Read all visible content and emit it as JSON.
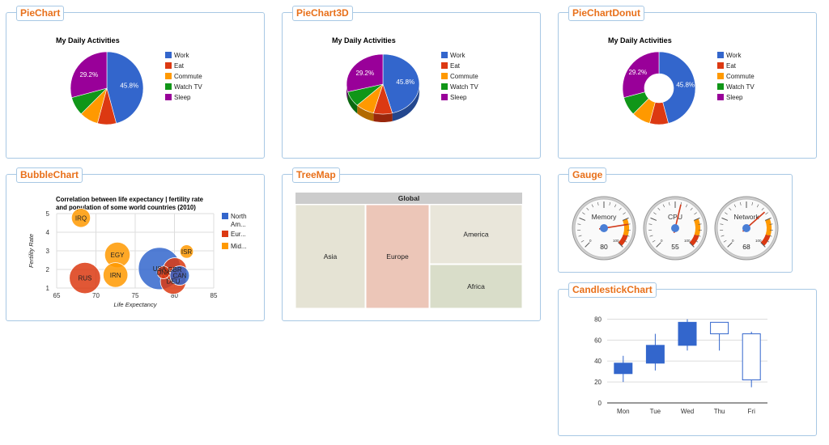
{
  "panels": {
    "piechart": "PieChart",
    "piechart3d": "PieChart3D",
    "piechartdonut": "PieChartDonut",
    "bubblechart": "BubbleChart",
    "treemap": "TreeMap",
    "gauge": "Gauge",
    "candlestick": "CandlestickChart"
  },
  "colors": {
    "work": "#3366cc",
    "eat": "#dc3912",
    "commute": "#ff9900",
    "watch_tv": "#109618",
    "sleep": "#990099",
    "panel_border": "#a8c8e4",
    "title_orange": "#e8701a"
  },
  "chart_data": [
    {
      "id": "pie",
      "type": "pie",
      "title": "My Daily Activities",
      "legend": "right",
      "labels": [
        "Work",
        "Eat",
        "Commute",
        "Watch TV",
        "Sleep"
      ],
      "values": [
        11,
        2,
        2,
        2,
        7
      ],
      "slice_labels": [
        "45.8%",
        "",
        "",
        "",
        "29.2%"
      ]
    },
    {
      "id": "pie3d",
      "type": "pie",
      "title": "My Daily Activities",
      "legend": "right",
      "labels": [
        "Work",
        "Eat",
        "Commute",
        "Watch TV",
        "Sleep"
      ],
      "values": [
        11,
        2,
        2,
        2,
        7
      ],
      "slice_labels": [
        "45.8%",
        "",
        "",
        "",
        "29.2%"
      ]
    },
    {
      "id": "donut",
      "type": "pie",
      "title": "My Daily Activities",
      "legend": "right",
      "labels": [
        "Work",
        "Eat",
        "Commute",
        "Watch TV",
        "Sleep"
      ],
      "values": [
        11,
        2,
        2,
        2,
        7
      ],
      "slice_labels": [
        "45.8%",
        "",
        "",
        "",
        "29.2%"
      ]
    },
    {
      "id": "bubble",
      "type": "scatter",
      "title": "Correlation between life expectancy | fertility rate",
      "title2": "and population of some world countries (2010)",
      "xlabel": "Life Expectancy",
      "ylabel": "Fertility Rate",
      "xlim": [
        65,
        85
      ],
      "ylim": [
        1,
        5
      ],
      "xticks": [
        "65",
        "70",
        "75",
        "80",
        "85"
      ],
      "yticks": [
        "1",
        "2",
        "3",
        "4",
        "5"
      ],
      "legend": [
        "North Am...",
        "Eur...",
        "Mid..."
      ],
      "points": [
        {
          "id": "CAN",
          "x": 80.66,
          "y": 1.67,
          "region": "North America",
          "size": 33739900
        },
        {
          "id": "DEU",
          "x": 79.84,
          "y": 1.36,
          "region": "Europe",
          "size": 81902307
        },
        {
          "id": "DNK",
          "x": 78.6,
          "y": 1.84,
          "region": "Europe",
          "size": 5523095
        },
        {
          "id": "EGY",
          "x": 72.73,
          "y": 2.78,
          "region": "Middle East",
          "size": 79716203
        },
        {
          "id": "GBR",
          "x": 80.05,
          "y": 2.0,
          "region": "Europe",
          "size": 61801570
        },
        {
          "id": "IRN",
          "x": 72.49,
          "y": 1.7,
          "region": "Middle East",
          "size": 73137148
        },
        {
          "id": "IRQ",
          "x": 68.09,
          "y": 4.77,
          "region": "Middle East",
          "size": 31090763
        },
        {
          "id": "ISR",
          "x": 81.55,
          "y": 2.96,
          "region": "Middle East",
          "size": 7485600
        },
        {
          "id": "RUS",
          "x": 68.6,
          "y": 1.54,
          "region": "Europe",
          "size": 141850000
        },
        {
          "id": "USA",
          "x": 78.09,
          "y": 2.05,
          "region": "North America",
          "size": 307007000
        }
      ]
    },
    {
      "id": "treemap",
      "type": "treemap",
      "root": "Global",
      "items": [
        "Asia",
        "Europe",
        "America",
        "Africa"
      ]
    },
    {
      "id": "gauge",
      "type": "gauge",
      "items": [
        {
          "label": "Memory",
          "value": 80
        },
        {
          "label": "CPU",
          "value": 55
        },
        {
          "label": "Network",
          "value": 68
        }
      ],
      "tick_labels": [
        "0",
        "100"
      ]
    },
    {
      "id": "candlestick",
      "type": "candlestick",
      "categories": [
        "Mon",
        "Tue",
        "Wed",
        "Thu",
        "Fri"
      ],
      "low": [
        20,
        31,
        50,
        50,
        15
      ],
      "open": [
        28,
        38,
        55,
        77,
        66
      ],
      "close": [
        38,
        55,
        77,
        66,
        22
      ],
      "high": [
        45,
        66,
        80,
        77,
        68
      ],
      "ylim": [
        0,
        85
      ],
      "yticks": [
        "0",
        "20",
        "40",
        "60",
        "80"
      ]
    }
  ]
}
